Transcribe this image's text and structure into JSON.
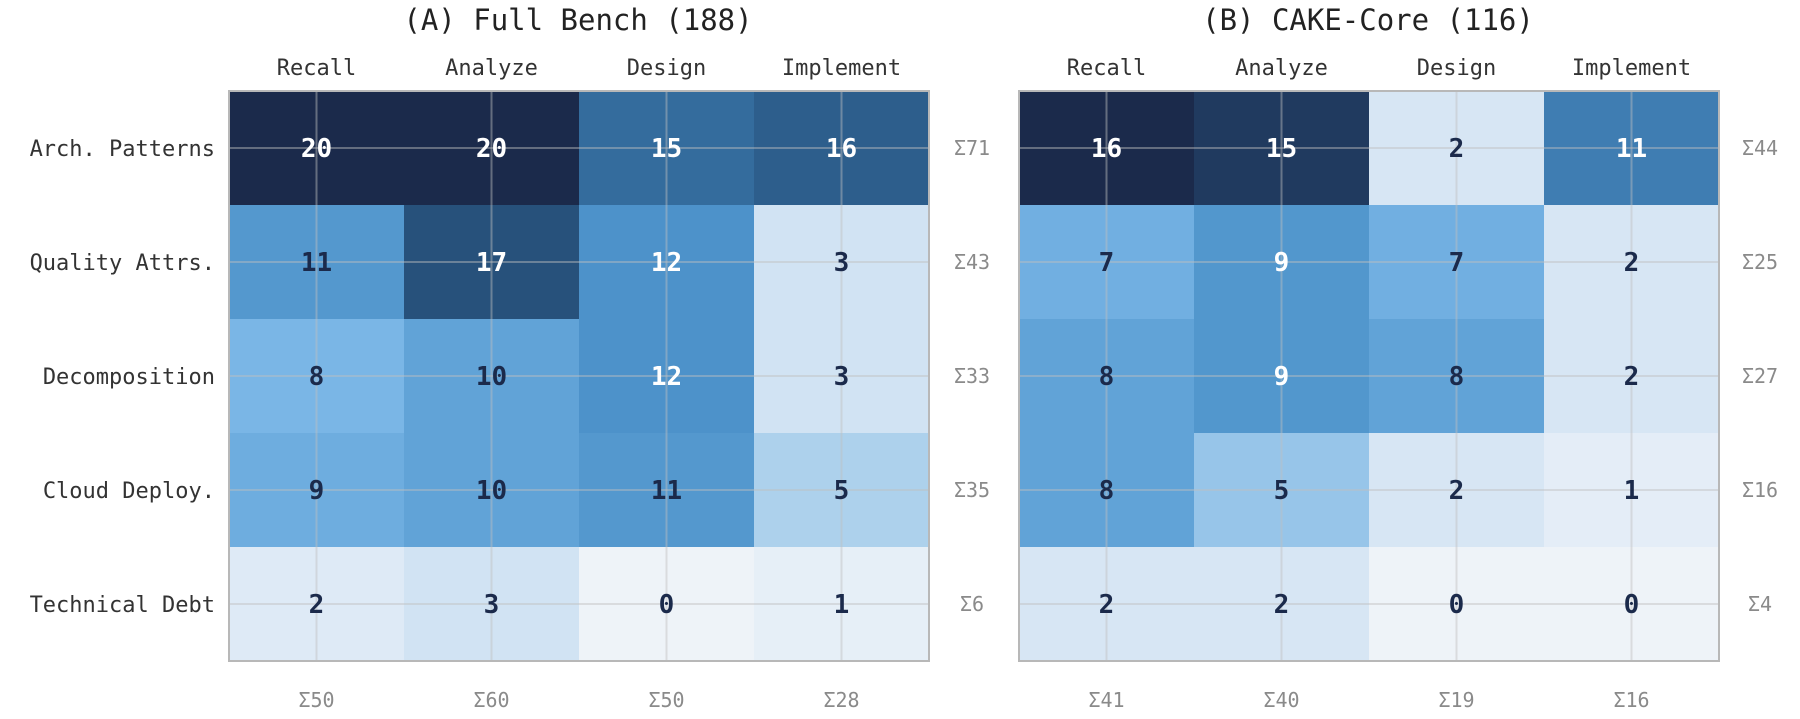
{
  "chart_data": [
    {
      "type": "heatmap",
      "title": "(A) Full Bench (188)",
      "columns": [
        "Recall",
        "Analyze",
        "Design",
        "Implement"
      ],
      "rows": [
        "Arch. Patterns",
        "Quality Attrs.",
        "Decomposition",
        "Cloud Deploy.",
        "Technical Debt"
      ],
      "values": [
        [
          20,
          20,
          15,
          16
        ],
        [
          11,
          17,
          12,
          3
        ],
        [
          8,
          10,
          12,
          3
        ],
        [
          9,
          10,
          11,
          5
        ],
        [
          2,
          3,
          0,
          1
        ]
      ],
      "row_sums": [
        "Σ71",
        "Σ43",
        "Σ33",
        "Σ35",
        "Σ6"
      ],
      "col_sums": [
        "Σ50",
        "Σ60",
        "Σ50",
        "Σ28"
      ],
      "color_max": 20
    },
    {
      "type": "heatmap",
      "title": "(B) CAKE-Core (116)",
      "columns": [
        "Recall",
        "Analyze",
        "Design",
        "Implement"
      ],
      "rows": [
        "Arch. Patterns",
        "Quality Attrs.",
        "Decomposition",
        "Cloud Deploy.",
        "Technical Debt"
      ],
      "values": [
        [
          16,
          15,
          2,
          11
        ],
        [
          7,
          9,
          7,
          2
        ],
        [
          8,
          9,
          8,
          2
        ],
        [
          8,
          5,
          2,
          1
        ],
        [
          2,
          2,
          0,
          0
        ]
      ],
      "row_sums": [
        "Σ44",
        "Σ25",
        "Σ27",
        "Σ16",
        "Σ4"
      ],
      "col_sums": [
        "Σ41",
        "Σ40",
        "Σ19",
        "Σ16"
      ],
      "color_max": 16
    }
  ],
  "colors": {
    "scale_low": "#eef3f8",
    "scale_high": "#1b2a4b",
    "text_dark": "#1b2a4b",
    "text_light": "#ffffff",
    "frame": "#b8b8b8",
    "sum_text": "#8a8a8a"
  }
}
